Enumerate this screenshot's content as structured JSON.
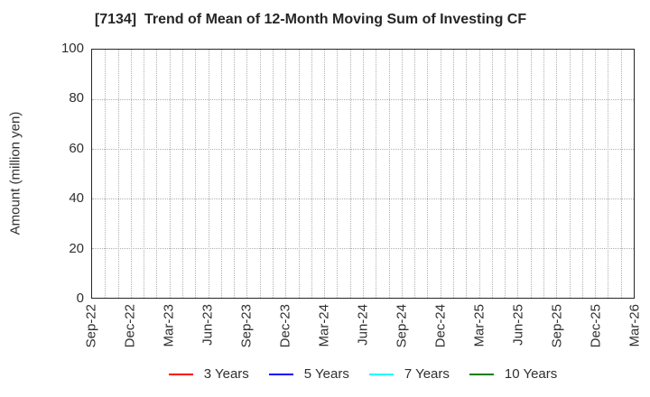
{
  "chart_data": {
    "type": "line",
    "title": "[7134]  Trend of Mean of 12-Month Moving Sum of Investing CF",
    "ylabel": "Amount (million yen)",
    "xlabel": "",
    "ylim": [
      0,
      100
    ],
    "yticks": [
      0,
      20,
      40,
      60,
      80,
      100
    ],
    "x_tick_labels": [
      "Sep-22",
      "Dec-22",
      "Mar-23",
      "Jun-23",
      "Sep-23",
      "Dec-23",
      "Mar-24",
      "Jun-24",
      "Sep-24",
      "Dec-24",
      "Mar-25",
      "Jun-25",
      "Sep-25",
      "Dec-25",
      "Mar-26"
    ],
    "x_axis": {
      "start": "Sep-22",
      "end": "Mar-26",
      "months_per_labeled_tick": 3,
      "total_month_intervals": 42
    },
    "grid": {
      "style": "dotted",
      "color": "#b0b0b0",
      "vertical": "monthly",
      "horizontal": "every 20 units"
    },
    "legend_position": "bottom-center",
    "series": [
      {
        "name": "3 Years",
        "color": "#ff0000",
        "values": []
      },
      {
        "name": "5 Years",
        "color": "#0000ff",
        "values": []
      },
      {
        "name": "7 Years",
        "color": "#00ffff",
        "values": []
      },
      {
        "name": "10 Years",
        "color": "#008000",
        "values": []
      }
    ],
    "plot_empty": true
  },
  "colors": {
    "background": "#ffffff",
    "title_text": "#262626",
    "axis_text": "#303030",
    "spine": "#262626",
    "gridline": "#b0b0b0"
  }
}
